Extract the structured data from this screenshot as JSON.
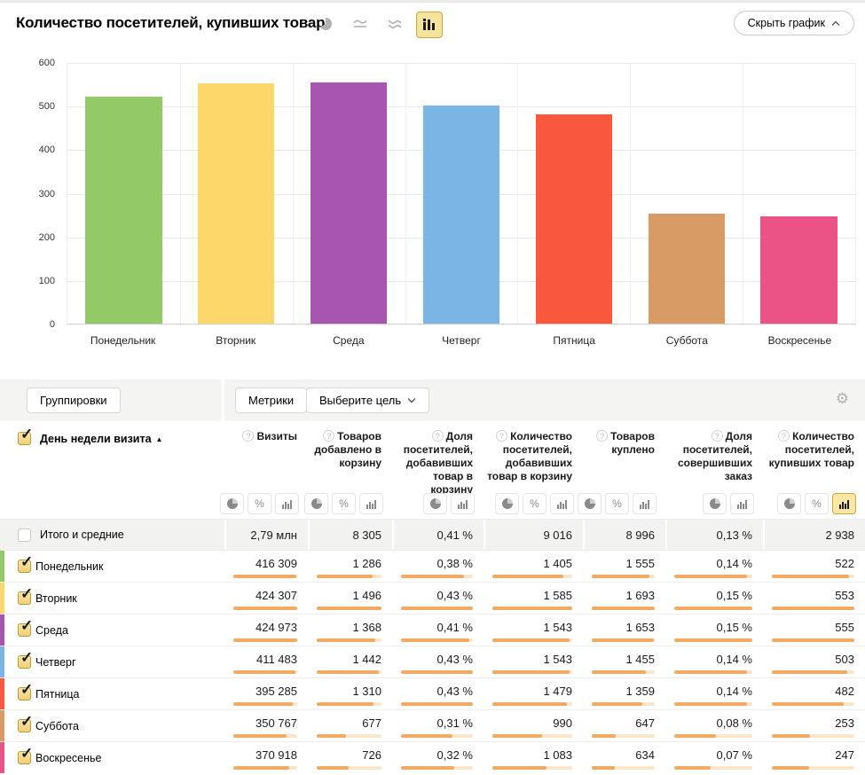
{
  "chart_header": {
    "title": "Количество посетителей, купивших товар",
    "chart_type_icons": [
      {
        "name": "pie-chart-icon",
        "selected": false
      },
      {
        "name": "line-chart-icon",
        "selected": false
      },
      {
        "name": "stacked-area-chart-icon",
        "selected": false
      },
      {
        "name": "bar-chart-icon",
        "selected": true
      }
    ],
    "hide_chart_label": "Скрыть график"
  },
  "chart_data": {
    "type": "bar",
    "title": "Количество посетителей, купивших товар",
    "categories": [
      "Понедельник",
      "Вторник",
      "Среда",
      "Четверг",
      "Пятница",
      "Суббота",
      "Воскресенье"
    ],
    "values": [
      522,
      553,
      555,
      503,
      482,
      253,
      247
    ],
    "colors": [
      "#94C967",
      "#FED76A",
      "#A755AE",
      "#7AB5E6",
      "#FA583C",
      "#D89B66",
      "#EB5285"
    ],
    "xlabel": "",
    "ylabel": "",
    "ylim": [
      0,
      600
    ],
    "yticks": [
      0,
      100,
      200,
      300,
      400,
      500,
      600
    ],
    "grid": true,
    "legend": "none"
  },
  "toolbar": {
    "groupings_label": "Группировки",
    "metrics_label": "Метрики",
    "goal_label": "Выберите цель",
    "gear_icon": "gear-icon"
  },
  "table": {
    "row_header": {
      "label": "День недели визита",
      "sort_direction": "asc",
      "checked": true
    },
    "columns": [
      {
        "label": "Визиты",
        "help_icon": "?",
        "toggles": [
          "pie",
          "percent",
          "bars"
        ],
        "selected_toggle": null
      },
      {
        "label": "Товаров добавлено в корзину",
        "help_icon": "?",
        "toggles": [
          "pie",
          "percent",
          "bars"
        ],
        "selected_toggle": null
      },
      {
        "label": "Доля посетителей, добавивших товар в корзину",
        "help_icon": "?",
        "toggles": [
          "pie",
          "bars"
        ],
        "selected_toggle": null
      },
      {
        "label": "Количество посетителей, добавивших товар в корзину",
        "help_icon": "?",
        "toggles": [
          "pie",
          "percent",
          "bars"
        ],
        "selected_toggle": null
      },
      {
        "label": "Товаров куплено",
        "help_icon": "?",
        "toggles": [
          "pie",
          "percent",
          "bars"
        ],
        "selected_toggle": null
      },
      {
        "label": "Доля посетителей, совершивших заказ",
        "help_icon": "?",
        "toggles": [
          "pie",
          "bars"
        ],
        "selected_toggle": null
      },
      {
        "label": "Количество посетителей, купивших товар",
        "help_icon": "?",
        "toggles": [
          "pie",
          "percent",
          "bars"
        ],
        "selected_toggle": "bars"
      }
    ],
    "totals": {
      "label": "Итого и средние",
      "checked": false,
      "values": [
        "2,79 млн",
        "8 305",
        "0,41 %",
        "9 016",
        "8 996",
        "0,13 %",
        "2 938"
      ]
    },
    "rows": [
      {
        "label": "Понедельник",
        "color": "#94C967",
        "checked": true,
        "values": [
          "416 309",
          "1 286",
          "0,38 %",
          "1 405",
          "1 555",
          "0,14 %",
          "522"
        ],
        "bar_fills": [
          0.98,
          0.86,
          0.88,
          0.89,
          0.92,
          0.93,
          0.94
        ]
      },
      {
        "label": "Вторник",
        "color": "#FED76A",
        "checked": true,
        "values": [
          "424 307",
          "1 496",
          "0,43 %",
          "1 585",
          "1 693",
          "0,15 %",
          "553"
        ],
        "bar_fills": [
          1.0,
          1.0,
          1.0,
          1.0,
          1.0,
          1.0,
          1.0
        ]
      },
      {
        "label": "Среда",
        "color": "#A755AE",
        "checked": true,
        "values": [
          "424 973",
          "1 368",
          "0,41 %",
          "1 543",
          "1 653",
          "0,15 %",
          "555"
        ],
        "bar_fills": [
          1.0,
          0.91,
          0.95,
          0.97,
          0.98,
          1.0,
          1.0
        ]
      },
      {
        "label": "Четверг",
        "color": "#7AB5E6",
        "checked": true,
        "values": [
          "411 483",
          "1 442",
          "0,43 %",
          "1 543",
          "1 455",
          "0,14 %",
          "503"
        ],
        "bar_fills": [
          0.97,
          0.96,
          1.0,
          0.97,
          0.86,
          0.93,
          0.91
        ]
      },
      {
        "label": "Пятница",
        "color": "#FA583C",
        "checked": true,
        "values": [
          "395 285",
          "1 310",
          "0,43 %",
          "1 479",
          "1 359",
          "0,14 %",
          "482"
        ],
        "bar_fills": [
          0.93,
          0.88,
          1.0,
          0.93,
          0.8,
          0.93,
          0.87
        ]
      },
      {
        "label": "Суббота",
        "color": "#D89B66",
        "checked": true,
        "values": [
          "350 767",
          "677",
          "0,31 %",
          "990",
          "647",
          "0,08 %",
          "253"
        ],
        "bar_fills": [
          0.83,
          0.45,
          0.72,
          0.62,
          0.38,
          0.53,
          0.46
        ]
      },
      {
        "label": "Воскресенье",
        "color": "#EB5285",
        "checked": true,
        "values": [
          "370 918",
          "726",
          "0,32 %",
          "1 083",
          "634",
          "0,07 %",
          "247"
        ],
        "bar_fills": [
          0.87,
          0.49,
          0.74,
          0.68,
          0.37,
          0.47,
          0.45
        ]
      }
    ],
    "minibar_fill_color": "#F2A962",
    "minibar_track_color": "#FBE6C9"
  }
}
